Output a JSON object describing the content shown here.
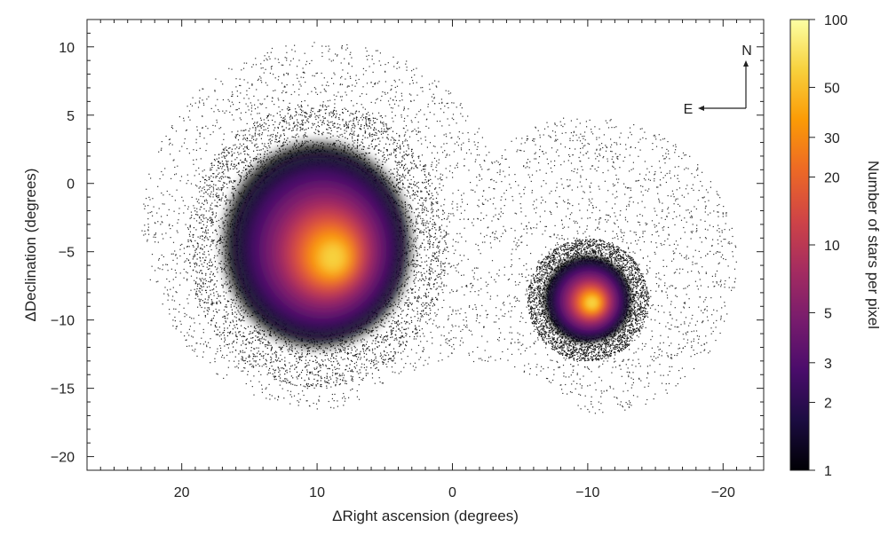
{
  "chart_data": {
    "type": "heatmap",
    "xlabel": "ΔRight ascension (degrees)",
    "ylabel": "ΔDeclination (degrees)",
    "xlim": [
      27,
      -23
    ],
    "ylim": [
      -21,
      12
    ],
    "x_ticks": [
      {
        "value": 20,
        "label": "20"
      },
      {
        "value": 10,
        "label": "10"
      },
      {
        "value": 0,
        "label": "0"
      },
      {
        "value": -10,
        "label": "−10"
      },
      {
        "value": -20,
        "label": "−20"
      }
    ],
    "y_ticks": [
      {
        "value": 10,
        "label": "10"
      },
      {
        "value": 5,
        "label": "5"
      },
      {
        "value": 0,
        "label": "0"
      },
      {
        "value": -5,
        "label": "−5"
      },
      {
        "value": -10,
        "label": "−10"
      },
      {
        "value": -15,
        "label": "−15"
      },
      {
        "value": -20,
        "label": "−20"
      }
    ],
    "colorbar": {
      "label": "Number of stars per pixel",
      "scale": "log",
      "range": [
        1,
        100
      ],
      "ticks": [
        {
          "value": 100,
          "label": "100"
        },
        {
          "value": 50,
          "label": "50"
        },
        {
          "value": 30,
          "label": "30"
        },
        {
          "value": 20,
          "label": "20"
        },
        {
          "value": 10,
          "label": "10"
        },
        {
          "value": 5,
          "label": "5"
        },
        {
          "value": 3,
          "label": "3"
        },
        {
          "value": 2,
          "label": "2"
        },
        {
          "value": 1,
          "label": "1"
        }
      ],
      "colormap": [
        "#000004",
        "#1b0c41",
        "#4a0c6b",
        "#781c6d",
        "#a52c60",
        "#cf4446",
        "#ed6925",
        "#fb9b06",
        "#f7d13d",
        "#fcffa4"
      ]
    },
    "compass": {
      "north_label": "N",
      "east_label": "E"
    },
    "structures": [
      {
        "center_x": 10,
        "center_y": -4.5,
        "radius_x": 6,
        "radius_y": 6.5,
        "peak_density": 90
      },
      {
        "center_x": -10,
        "center_y": -8.5,
        "radius_x": 2.8,
        "radius_y": 2.8,
        "peak_density": 70
      }
    ],
    "field_outer_radius": [
      13.5,
      11
    ],
    "field_centers": [
      [
        9.5,
        -3
      ],
      [
        -10,
        -6
      ]
    ]
  }
}
